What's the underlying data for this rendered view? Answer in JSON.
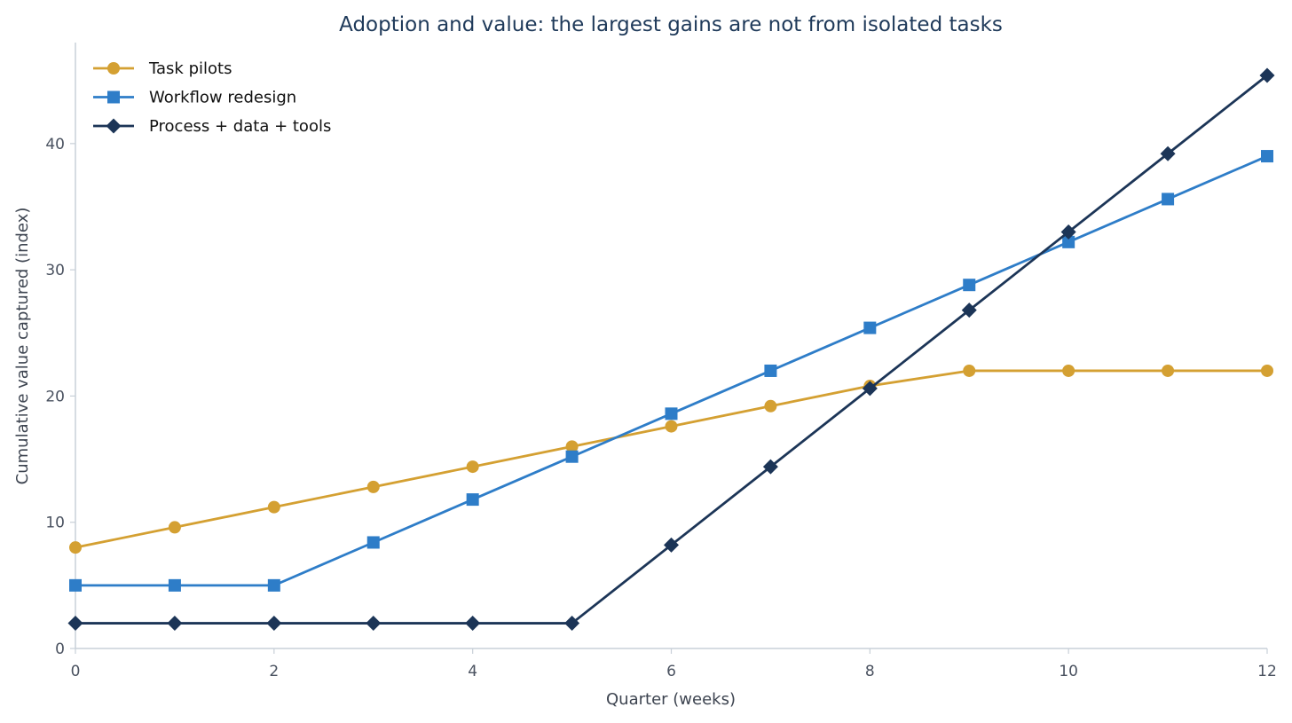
{
  "chart_data": {
    "type": "line",
    "title": "Adoption and value: the largest gains are not from isolated tasks",
    "xlabel": "Quarter (weeks)",
    "ylabel": "Cumulative value captured (index)",
    "xlim": [
      0,
      12
    ],
    "ylim": [
      0,
      48
    ],
    "xticks": [
      0,
      2,
      4,
      6,
      8,
      10,
      12
    ],
    "yticks": [
      0,
      10,
      20,
      30,
      40
    ],
    "grid": false,
    "legend_position": "top-left",
    "x": [
      0,
      1,
      2,
      3,
      4,
      5,
      6,
      7,
      8,
      9,
      10,
      11,
      12
    ],
    "series": [
      {
        "name": "Task pilots",
        "color": "#d4a032",
        "marker": "circle",
        "values": [
          8.0,
          9.6,
          11.2,
          12.8,
          14.4,
          16.0,
          17.6,
          19.2,
          20.8,
          22.0,
          22.0,
          22.0,
          22.0
        ]
      },
      {
        "name": "Workflow redesign",
        "color": "#2e7dc8",
        "marker": "square",
        "values": [
          5.0,
          5.0,
          5.0,
          8.4,
          11.8,
          15.2,
          18.6,
          22.0,
          25.4,
          28.8,
          32.2,
          35.6,
          39.0
        ]
      },
      {
        "name": "Process + data + tools",
        "color": "#1c3557",
        "marker": "diamond",
        "values": [
          2.0,
          2.0,
          2.0,
          2.0,
          2.0,
          2.0,
          8.2,
          14.4,
          20.6,
          26.8,
          33.0,
          39.2,
          45.4
        ]
      }
    ]
  }
}
